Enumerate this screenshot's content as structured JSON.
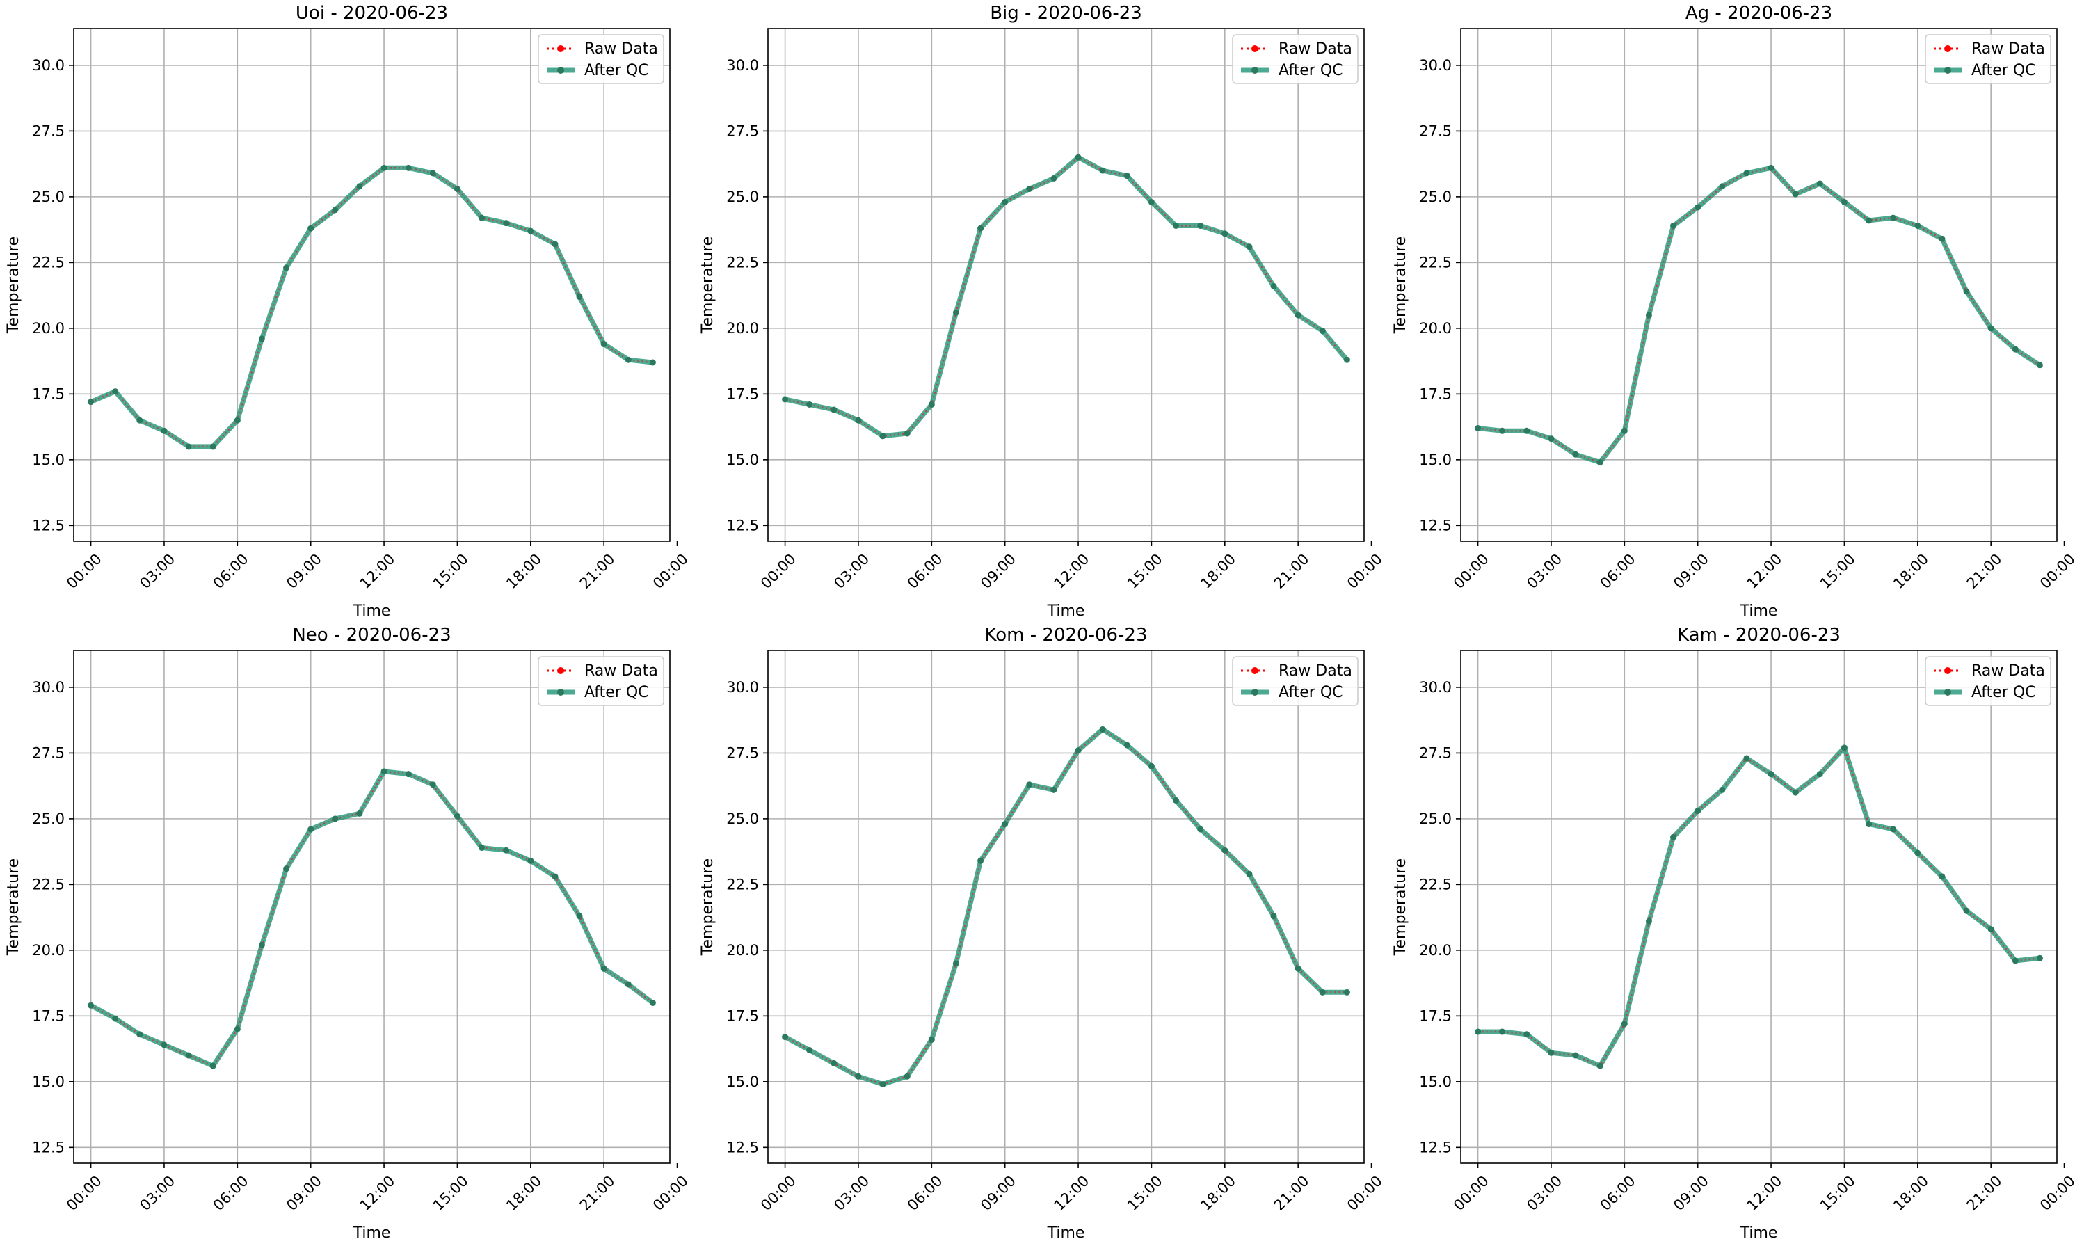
{
  "figure": {
    "layout": "2x3 grid of line charts",
    "background_color": "#ffffff"
  },
  "legend": {
    "placement": "top-right",
    "raw_label": "Raw Data",
    "qc_label": "After QC"
  },
  "colors": {
    "raw": "#ff0000",
    "after_qc": "#2e9b7f",
    "after_qc_marker": "#2b7a5f",
    "grid": "#b0b0b0",
    "axes": "#000000"
  },
  "chart_data": [
    {
      "type": "line",
      "title": "Uoi - 2020-06-23",
      "xlabel": "Time",
      "ylabel": "Temperature",
      "grid": true,
      "xlim": [
        -0.7,
        23.7
      ],
      "ylim": [
        11.9,
        31.4
      ],
      "x": [
        0,
        1,
        2,
        3,
        4,
        5,
        6,
        7,
        8,
        9,
        10,
        11,
        12,
        13,
        14,
        15,
        16,
        17,
        18,
        19,
        20,
        21,
        22,
        23
      ],
      "xticks": [
        0,
        3,
        6,
        9,
        12,
        15,
        18,
        21,
        24
      ],
      "xtick_labels": [
        "00:00",
        "03:00",
        "06:00",
        "09:00",
        "12:00",
        "15:00",
        "18:00",
        "21:00",
        "00:00"
      ],
      "yticks": [
        12.5,
        15.0,
        17.5,
        20.0,
        22.5,
        25.0,
        27.5,
        30.0
      ],
      "ytick_labels": [
        "12.5",
        "15.0",
        "17.5",
        "20.0",
        "22.5",
        "25.0",
        "27.5",
        "30.0"
      ],
      "series": [
        {
          "name": "Raw Data",
          "values": [
            17.2,
            17.6,
            16.5,
            16.1,
            15.5,
            15.5,
            16.5,
            19.6,
            22.3,
            23.8,
            24.5,
            25.4,
            26.1,
            26.1,
            25.9,
            25.3,
            24.2,
            24.0,
            23.7,
            23.2,
            21.2,
            19.4,
            18.8,
            18.7
          ]
        },
        {
          "name": "After QC",
          "values": [
            17.2,
            17.6,
            16.5,
            16.1,
            15.5,
            15.5,
            16.5,
            19.6,
            22.3,
            23.8,
            24.5,
            25.4,
            26.1,
            26.1,
            25.9,
            25.3,
            24.2,
            24.0,
            23.7,
            23.2,
            21.2,
            19.4,
            18.8,
            18.7
          ]
        }
      ]
    },
    {
      "type": "line",
      "title": "Big - 2020-06-23",
      "xlabel": "Time",
      "ylabel": "Temperature",
      "grid": true,
      "xlim": [
        -0.7,
        23.7
      ],
      "ylim": [
        11.9,
        31.4
      ],
      "x": [
        0,
        1,
        2,
        3,
        4,
        5,
        6,
        7,
        8,
        9,
        10,
        11,
        12,
        13,
        14,
        15,
        16,
        17,
        18,
        19,
        20,
        21,
        22,
        23
      ],
      "xticks": [
        0,
        3,
        6,
        9,
        12,
        15,
        18,
        21,
        24
      ],
      "xtick_labels": [
        "00:00",
        "03:00",
        "06:00",
        "09:00",
        "12:00",
        "15:00",
        "18:00",
        "21:00",
        "00:00"
      ],
      "yticks": [
        12.5,
        15.0,
        17.5,
        20.0,
        22.5,
        25.0,
        27.5,
        30.0
      ],
      "ytick_labels": [
        "12.5",
        "15.0",
        "17.5",
        "20.0",
        "22.5",
        "25.0",
        "27.5",
        "30.0"
      ],
      "series": [
        {
          "name": "Raw Data",
          "values": [
            17.3,
            17.1,
            16.9,
            16.5,
            15.9,
            16.0,
            17.1,
            20.6,
            23.8,
            24.8,
            25.3,
            25.7,
            26.5,
            26.0,
            25.8,
            24.8,
            23.9,
            23.9,
            23.6,
            23.1,
            21.6,
            20.5,
            19.9,
            18.8
          ]
        },
        {
          "name": "After QC",
          "values": [
            17.3,
            17.1,
            16.9,
            16.5,
            15.9,
            16.0,
            17.1,
            20.6,
            23.8,
            24.8,
            25.3,
            25.7,
            26.5,
            26.0,
            25.8,
            24.8,
            23.9,
            23.9,
            23.6,
            23.1,
            21.6,
            20.5,
            19.9,
            18.8
          ]
        }
      ]
    },
    {
      "type": "line",
      "title": "Ag - 2020-06-23",
      "xlabel": "Time",
      "ylabel": "Temperature",
      "grid": true,
      "xlim": [
        -0.7,
        23.7
      ],
      "ylim": [
        11.9,
        31.4
      ],
      "x": [
        0,
        1,
        2,
        3,
        4,
        5,
        6,
        7,
        8,
        9,
        10,
        11,
        12,
        13,
        14,
        15,
        16,
        17,
        18,
        19,
        20,
        21,
        22,
        23
      ],
      "xticks": [
        0,
        3,
        6,
        9,
        12,
        15,
        18,
        21,
        24
      ],
      "xtick_labels": [
        "00:00",
        "03:00",
        "06:00",
        "09:00",
        "12:00",
        "15:00",
        "18:00",
        "21:00",
        "00:00"
      ],
      "yticks": [
        12.5,
        15.0,
        17.5,
        20.0,
        22.5,
        25.0,
        27.5,
        30.0
      ],
      "ytick_labels": [
        "12.5",
        "15.0",
        "17.5",
        "20.0",
        "22.5",
        "25.0",
        "27.5",
        "30.0"
      ],
      "series": [
        {
          "name": "Raw Data",
          "values": [
            16.2,
            16.1,
            16.1,
            15.8,
            15.2,
            14.9,
            16.1,
            20.5,
            23.9,
            24.6,
            25.4,
            25.9,
            26.1,
            25.1,
            25.5,
            24.8,
            24.1,
            24.2,
            23.9,
            23.4,
            21.4,
            20.0,
            19.2,
            18.6
          ]
        },
        {
          "name": "After QC",
          "values": [
            16.2,
            16.1,
            16.1,
            15.8,
            15.2,
            14.9,
            16.1,
            20.5,
            23.9,
            24.6,
            25.4,
            25.9,
            26.1,
            25.1,
            25.5,
            24.8,
            24.1,
            24.2,
            23.9,
            23.4,
            21.4,
            20.0,
            19.2,
            18.6
          ]
        }
      ]
    },
    {
      "type": "line",
      "title": "Neo - 2020-06-23",
      "xlabel": "Time",
      "ylabel": "Temperature",
      "grid": true,
      "xlim": [
        -0.7,
        23.7
      ],
      "ylim": [
        11.9,
        31.4
      ],
      "x": [
        0,
        1,
        2,
        3,
        4,
        5,
        6,
        7,
        8,
        9,
        10,
        11,
        12,
        13,
        14,
        15,
        16,
        17,
        18,
        19,
        20,
        21,
        22,
        23
      ],
      "xticks": [
        0,
        3,
        6,
        9,
        12,
        15,
        18,
        21,
        24
      ],
      "xtick_labels": [
        "00:00",
        "03:00",
        "06:00",
        "09:00",
        "12:00",
        "15:00",
        "18:00",
        "21:00",
        "00:00"
      ],
      "yticks": [
        12.5,
        15.0,
        17.5,
        20.0,
        22.5,
        25.0,
        27.5,
        30.0
      ],
      "ytick_labels": [
        "12.5",
        "15.0",
        "17.5",
        "20.0",
        "22.5",
        "25.0",
        "27.5",
        "30.0"
      ],
      "series": [
        {
          "name": "Raw Data",
          "values": [
            17.9,
            17.4,
            16.8,
            16.4,
            16.0,
            15.6,
            17.0,
            20.2,
            23.1,
            24.6,
            25.0,
            25.2,
            26.8,
            26.7,
            26.3,
            25.1,
            23.9,
            23.8,
            23.4,
            22.8,
            21.3,
            19.3,
            18.7,
            18.0
          ]
        },
        {
          "name": "After QC",
          "values": [
            17.9,
            17.4,
            16.8,
            16.4,
            16.0,
            15.6,
            17.0,
            20.2,
            23.1,
            24.6,
            25.0,
            25.2,
            26.8,
            26.7,
            26.3,
            25.1,
            23.9,
            23.8,
            23.4,
            22.8,
            21.3,
            19.3,
            18.7,
            18.0
          ]
        }
      ]
    },
    {
      "type": "line",
      "title": "Kom - 2020-06-23",
      "xlabel": "Time",
      "ylabel": "Temperature",
      "grid": true,
      "xlim": [
        -0.7,
        23.7
      ],
      "ylim": [
        11.9,
        31.4
      ],
      "x": [
        0,
        1,
        2,
        3,
        4,
        5,
        6,
        7,
        8,
        9,
        10,
        11,
        12,
        13,
        14,
        15,
        16,
        17,
        18,
        19,
        20,
        21,
        22,
        23
      ],
      "xticks": [
        0,
        3,
        6,
        9,
        12,
        15,
        18,
        21,
        24
      ],
      "xtick_labels": [
        "00:00",
        "03:00",
        "06:00",
        "09:00",
        "12:00",
        "15:00",
        "18:00",
        "21:00",
        "00:00"
      ],
      "yticks": [
        12.5,
        15.0,
        17.5,
        20.0,
        22.5,
        25.0,
        27.5,
        30.0
      ],
      "ytick_labels": [
        "12.5",
        "15.0",
        "17.5",
        "20.0",
        "22.5",
        "25.0",
        "27.5",
        "30.0"
      ],
      "series": [
        {
          "name": "Raw Data",
          "values": [
            16.7,
            16.2,
            15.7,
            15.2,
            14.9,
            15.2,
            16.6,
            19.5,
            23.4,
            24.8,
            26.3,
            26.1,
            27.6,
            28.4,
            27.8,
            27.0,
            25.7,
            24.6,
            23.8,
            22.9,
            21.3,
            19.3,
            18.4,
            18.4
          ]
        },
        {
          "name": "After QC",
          "values": [
            16.7,
            16.2,
            15.7,
            15.2,
            14.9,
            15.2,
            16.6,
            19.5,
            23.4,
            24.8,
            26.3,
            26.1,
            27.6,
            28.4,
            27.8,
            27.0,
            25.7,
            24.6,
            23.8,
            22.9,
            21.3,
            19.3,
            18.4,
            18.4
          ]
        }
      ]
    },
    {
      "type": "line",
      "title": "Kam - 2020-06-23",
      "xlabel": "Time",
      "ylabel": "Temperature",
      "grid": true,
      "xlim": [
        -0.7,
        23.7
      ],
      "ylim": [
        11.9,
        31.4
      ],
      "x": [
        0,
        1,
        2,
        3,
        4,
        5,
        6,
        7,
        8,
        9,
        10,
        11,
        12,
        13,
        14,
        15,
        16,
        17,
        18,
        19,
        20,
        21,
        22,
        23
      ],
      "xticks": [
        0,
        3,
        6,
        9,
        12,
        15,
        18,
        21,
        24
      ],
      "xtick_labels": [
        "00:00",
        "03:00",
        "06:00",
        "09:00",
        "12:00",
        "15:00",
        "18:00",
        "21:00",
        "00:00"
      ],
      "yticks": [
        12.5,
        15.0,
        17.5,
        20.0,
        22.5,
        25.0,
        27.5,
        30.0
      ],
      "ytick_labels": [
        "12.5",
        "15.0",
        "17.5",
        "20.0",
        "22.5",
        "25.0",
        "27.5",
        "30.0"
      ],
      "series": [
        {
          "name": "Raw Data",
          "values": [
            16.9,
            16.9,
            16.8,
            16.1,
            16.0,
            15.6,
            17.2,
            21.1,
            24.3,
            25.3,
            26.1,
            27.3,
            26.7,
            26.0,
            26.7,
            27.7,
            24.8,
            24.6,
            23.7,
            22.8,
            21.5,
            20.8,
            19.6,
            19.7
          ]
        },
        {
          "name": "After QC",
          "values": [
            16.9,
            16.9,
            16.8,
            16.1,
            16.0,
            15.6,
            17.2,
            21.1,
            24.3,
            25.3,
            26.1,
            27.3,
            26.7,
            26.0,
            26.7,
            27.7,
            24.8,
            24.6,
            23.7,
            22.8,
            21.5,
            20.8,
            19.6,
            19.7
          ]
        }
      ]
    }
  ]
}
